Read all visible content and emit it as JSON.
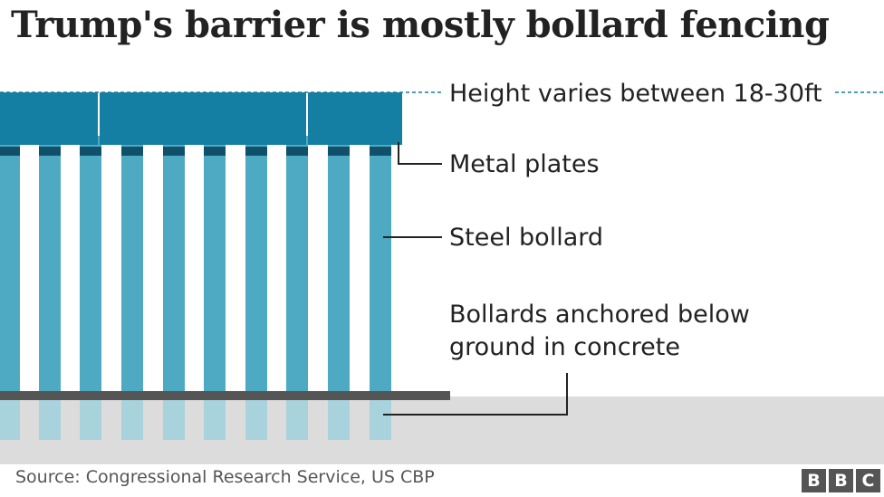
{
  "title": "Trump's barrier is mostly bollard fencing",
  "labels": {
    "height": "Height varies between 18-30ft",
    "plates": "Metal plates",
    "bollard": "Steel bollard",
    "anchored_line1": "Bollards anchored below",
    "anchored_line2": "ground in concrete"
  },
  "source": "Source: Congressional Research Service, US CBP",
  "logo": {
    "letters": [
      "B",
      "B",
      "C"
    ]
  },
  "colors": {
    "plate": "#147fa2",
    "bollard": "#4eaac2",
    "bollard_below_ground": "#a8d3dd",
    "bollard_cap": "#10506a",
    "ground_line": "#555555",
    "ground": "#dcdcdc",
    "leader": "#222222",
    "dash": "#147fa2"
  }
}
